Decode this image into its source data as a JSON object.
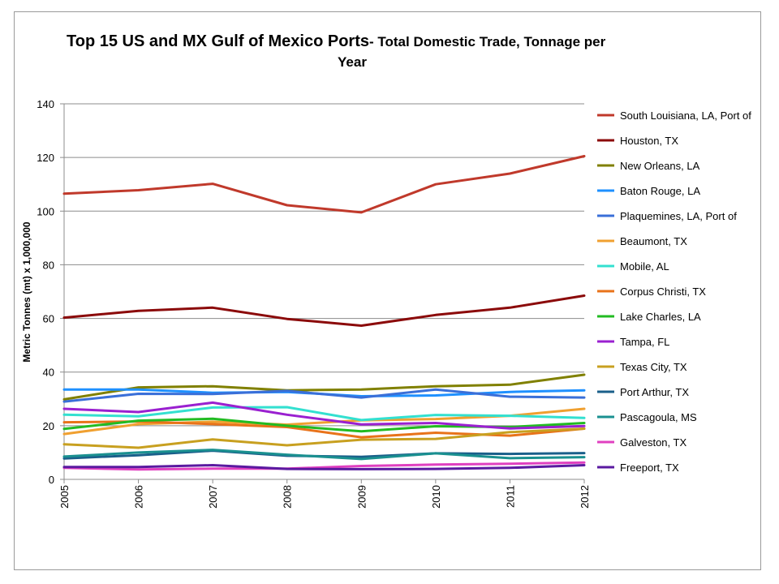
{
  "chart_data": {
    "type": "line",
    "title_main": "Top 15 US and MX Gulf of Mexico Ports",
    "title_rest": "- Total Domestic Trade, Tonnage per",
    "title_line2": "Year",
    "xlabel": "",
    "ylabel": "Metric Tonnes (mt) x 1,000,000",
    "ylim": [
      0,
      140
    ],
    "yticks": [
      "0",
      "20",
      "40",
      "60",
      "80",
      "100",
      "120",
      "140"
    ],
    "x": [
      "2005",
      "2006",
      "2007",
      "2008",
      "2009",
      "2010",
      "2011",
      "2012"
    ],
    "grid": "horizontal",
    "legend_position": "right",
    "series": [
      {
        "name": "South Louisiana, LA, Port of",
        "color": "#C0392B",
        "values": [
          106.5,
          107.8,
          110.2,
          102.2,
          99.5,
          110.0,
          114.0,
          120.5
        ]
      },
      {
        "name": "Houston, TX",
        "color": "#8B0A0A",
        "values": [
          60.3,
          62.8,
          64.0,
          59.8,
          57.3,
          61.3,
          64.0,
          68.5
        ]
      },
      {
        "name": "New Orleans, LA",
        "color": "#808000",
        "values": [
          29.8,
          34.3,
          34.7,
          33.2,
          33.5,
          34.7,
          35.3,
          39.0
        ]
      },
      {
        "name": "Baton Rouge, LA",
        "color": "#1E90FF",
        "values": [
          33.5,
          33.5,
          32.3,
          32.6,
          31.0,
          31.3,
          32.6,
          33.2
        ]
      },
      {
        "name": "Plaquemines, LA, Port of",
        "color": "#3A6FD8",
        "values": [
          29.0,
          31.9,
          31.8,
          33.0,
          30.5,
          33.5,
          30.8,
          30.5
        ]
      },
      {
        "name": "Beaumont, TX",
        "color": "#F0A030",
        "values": [
          16.9,
          20.6,
          21.5,
          20.4,
          22.0,
          22.5,
          23.7,
          26.3
        ]
      },
      {
        "name": "Mobile, AL",
        "color": "#33E0D0",
        "values": [
          24.1,
          23.5,
          26.8,
          26.9,
          22.1,
          24.0,
          23.7,
          22.9
        ]
      },
      {
        "name": "Corpus Christi, TX",
        "color": "#E8731A",
        "values": [
          21.3,
          21.6,
          20.6,
          19.5,
          15.7,
          17.4,
          16.3,
          18.9
        ]
      },
      {
        "name": "Lake Charles, LA",
        "color": "#22BB22",
        "values": [
          18.8,
          21.9,
          22.6,
          20.0,
          17.9,
          19.8,
          19.5,
          21.0
        ]
      },
      {
        "name": "Tampa, FL",
        "color": "#9A20D0",
        "values": [
          26.3,
          25.1,
          28.6,
          24.1,
          20.5,
          21.0,
          19.0,
          19.9
        ]
      },
      {
        "name": "Texas City, TX",
        "color": "#C8A020",
        "values": [
          13.1,
          11.8,
          14.9,
          12.7,
          14.8,
          15.1,
          17.6,
          18.9
        ]
      },
      {
        "name": "Port Arthur, TX",
        "color": "#1A5F8A",
        "values": [
          7.8,
          9.0,
          10.7,
          8.8,
          8.4,
          9.7,
          9.5,
          9.8
        ]
      },
      {
        "name": "Pascagoula, MS",
        "color": "#1A9090",
        "values": [
          8.5,
          10.0,
          11.0,
          9.2,
          7.6,
          9.7,
          7.9,
          8.3
        ]
      },
      {
        "name": "Galveston, TX",
        "color": "#E040C0",
        "values": [
          4.3,
          3.7,
          4.0,
          4.0,
          5.0,
          5.5,
          5.8,
          6.3
        ]
      },
      {
        "name": "Freeport, TX",
        "color": "#5A1AA0",
        "values": [
          4.6,
          4.6,
          5.3,
          3.9,
          3.8,
          3.9,
          4.3,
          5.3
        ]
      }
    ]
  }
}
